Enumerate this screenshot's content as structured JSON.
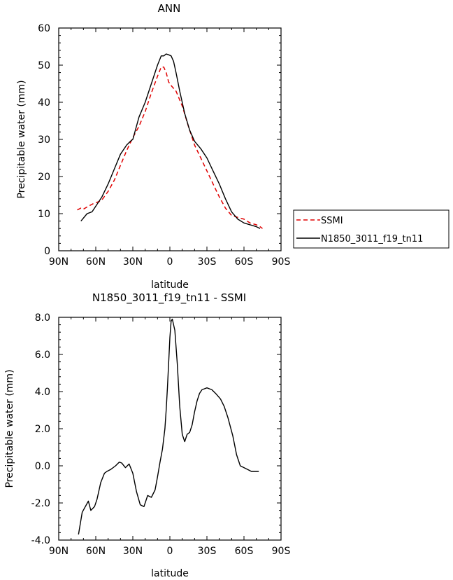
{
  "chart_data": [
    {
      "type": "line",
      "title": "ANN",
      "xlabel": "latitude",
      "ylabel": "Precipitable water (mm)",
      "xlim": [
        -90,
        90
      ],
      "ylim": [
        0,
        60
      ],
      "xticks": [
        -90,
        -60,
        -30,
        0,
        30,
        60,
        90
      ],
      "xtick_labels": [
        "90N",
        "60N",
        "30N",
        "0",
        "30S",
        "60S",
        "90S"
      ],
      "yticks": [
        0,
        10,
        20,
        30,
        40,
        50,
        60
      ],
      "ytick_labels": [
        "0",
        "10",
        "20",
        "30",
        "40",
        "50",
        "60"
      ],
      "legend": "right",
      "series": [
        {
          "name": "SSMI",
          "color": "#e00000",
          "style": "dashed",
          "x": [
            -75,
            -72,
            -70,
            -66,
            -62,
            -57,
            -55,
            -50,
            -45,
            -40,
            -35,
            -30,
            -25,
            -20,
            -15,
            -10,
            -7,
            -5,
            -3,
            -1,
            1,
            5,
            10,
            15,
            20,
            25,
            30,
            35,
            40,
            45,
            50,
            55,
            60,
            65,
            70,
            73,
            75
          ],
          "y": [
            11,
            11.5,
            11.2,
            12,
            12.7,
            13.3,
            13.7,
            16,
            19,
            23,
            27,
            30.5,
            33.5,
            37.5,
            42.5,
            47,
            49.5,
            49.5,
            48,
            45.5,
            44.5,
            43,
            39,
            33.5,
            28.5,
            25,
            21.5,
            18,
            14.5,
            11.5,
            9.5,
            9,
            8.5,
            7.5,
            7,
            6.5,
            6
          ]
        },
        {
          "name": "N1850_3011_f19_tn11",
          "color": "#000000",
          "style": "solid",
          "x": [
            -72,
            -67,
            -63,
            -60,
            -55,
            -50,
            -45,
            -40,
            -35,
            -32,
            -30,
            -25,
            -20,
            -15,
            -10,
            -7,
            -5,
            -3,
            -1,
            1,
            3,
            5,
            8,
            12,
            16,
            20,
            25,
            30,
            35,
            40,
            45,
            50,
            55,
            60,
            65,
            70,
            73
          ],
          "y": [
            8,
            10,
            10.5,
            12,
            14.5,
            18,
            22,
            26,
            28.5,
            29.5,
            30,
            36,
            40,
            45,
            50,
            52.5,
            52.5,
            53,
            52.8,
            52.5,
            51,
            48,
            43,
            37,
            32.5,
            29.5,
            27.5,
            25,
            21.5,
            18,
            14,
            10.5,
            8.5,
            7.5,
            7,
            6.5,
            6
          ]
        }
      ]
    },
    {
      "type": "line",
      "title": "N1850_3011_f19_tn11 - SSMI",
      "xlabel": "latitude",
      "ylabel": "Precipitable water (mm)",
      "xlim": [
        -90,
        90
      ],
      "ylim": [
        -4,
        8
      ],
      "xticks": [
        -90,
        -60,
        -30,
        0,
        30,
        60,
        90
      ],
      "xtick_labels": [
        "90N",
        "60N",
        "30N",
        "0",
        "30S",
        "60S",
        "90S"
      ],
      "yticks": [
        -4,
        -2,
        0,
        2,
        4,
        6,
        8
      ],
      "ytick_labels": [
        "-4.0",
        "-2.0",
        "0.0",
        "2.0",
        "4.0",
        "6.0",
        "8.0"
      ],
      "series": [
        {
          "color": "#000000",
          "style": "solid",
          "x": [
            -74,
            -71,
            -66,
            -64,
            -61,
            -59,
            -56,
            -53,
            -51,
            -48,
            -44,
            -41,
            -39,
            -36,
            -33,
            -30,
            -27,
            -24,
            -21,
            -18,
            -15,
            -12,
            -10,
            -8,
            -6,
            -4,
            -3,
            -2,
            -1,
            0,
            1,
            2,
            4,
            6,
            8,
            10,
            12,
            14,
            16,
            18,
            20,
            22,
            24,
            26,
            28,
            30,
            32,
            34,
            37,
            41,
            44,
            47,
            51,
            54,
            57,
            60,
            63,
            66,
            70,
            72
          ],
          "y": [
            -3.7,
            -2.5,
            -1.9,
            -2.4,
            -2.2,
            -1.8,
            -0.9,
            -0.4,
            -0.3,
            -0.2,
            0.0,
            0.2,
            0.15,
            -0.1,
            0.1,
            -0.4,
            -1.4,
            -2.1,
            -2.2,
            -1.6,
            -1.7,
            -1.3,
            -0.6,
            0.2,
            0.9,
            2.0,
            3.0,
            4.2,
            5.5,
            6.9,
            7.8,
            7.9,
            7.3,
            5.5,
            3.2,
            1.7,
            1.3,
            1.7,
            1.8,
            2.2,
            2.9,
            3.5,
            3.9,
            4.1,
            4.15,
            4.2,
            4.15,
            4.1,
            3.9,
            3.6,
            3.2,
            2.6,
            1.6,
            0.6,
            0.0,
            -0.1,
            -0.2,
            -0.3,
            -0.3,
            -0.3
          ]
        }
      ]
    }
  ]
}
